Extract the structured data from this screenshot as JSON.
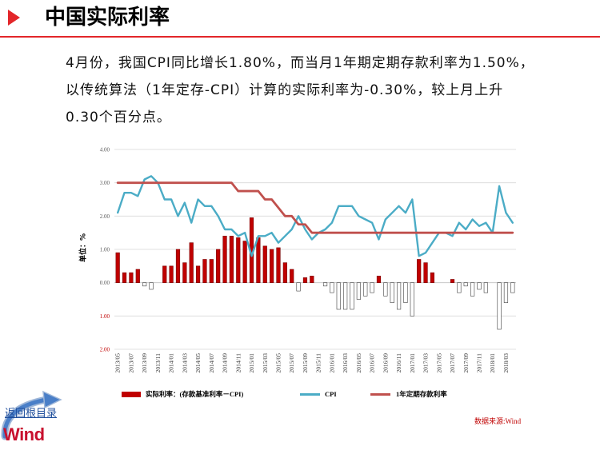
{
  "header": {
    "title": "中国实际利率"
  },
  "summary": {
    "lines": [
      "4月份，我国CPI同比增长1.80%，而当月1年期定期存款利率为1.50%，",
      "以传统算法（1年定存-CPI）计算的实际利率为-0.30%，较上月上升",
      "0.30个百分点。"
    ]
  },
  "colors": {
    "accent": "#e3262a",
    "bar": "#c00000",
    "cpi": "#4bacc6",
    "deposit": "#c0504d",
    "link": "#1f4e9c",
    "source": "#c00000"
  },
  "chart_data": {
    "type": "bar",
    "ylabel": "单位：%",
    "ylim": [
      -2,
      4
    ],
    "grid": true,
    "legend_position": "bottom",
    "negative_tick_color": "#c00000",
    "negative_bar_fill": "#ffffff",
    "y_ticks": [
      {
        "value": 4,
        "label": "4.00"
      },
      {
        "value": 3,
        "label": "3.00"
      },
      {
        "value": 2,
        "label": "2.00"
      },
      {
        "value": 1,
        "label": "1.00"
      },
      {
        "value": 0,
        "label": "0.00"
      },
      {
        "value": -1,
        "label": "1.00"
      },
      {
        "value": -2,
        "label": "2.00"
      }
    ],
    "categories": [
      "2013/05",
      "2013/06",
      "2013/07",
      "2013/08",
      "2013/09",
      "2013/10",
      "2013/11",
      "2013/12",
      "2014/01",
      "2014/02",
      "2014/03",
      "2014/04",
      "2014/05",
      "2014/06",
      "2014/07",
      "2014/08",
      "2014/09",
      "2014/10",
      "2014/11",
      "2014/12",
      "2015/01",
      "2015/02",
      "2015/03",
      "2015/04",
      "2015/05",
      "2015/06",
      "2015/07",
      "2015/08",
      "2015/09",
      "2015/10",
      "2015/11",
      "2015/12",
      "2016/01",
      "2016/02",
      "2016/03",
      "2016/04",
      "2016/05",
      "2016/06",
      "2016/07",
      "2016/08",
      "2016/09",
      "2016/10",
      "2016/11",
      "2016/12",
      "2017/01",
      "2017/02",
      "2017/03",
      "2017/04",
      "2017/05",
      "2017/06",
      "2017/07",
      "2017/08",
      "2017/09",
      "2017/10",
      "2017/11",
      "2017/12",
      "2018/01",
      "2018/02",
      "2018/03",
      "2018/04"
    ],
    "series": [
      {
        "name": "实际利率：(存款基准利率－CPI)",
        "type": "bar",
        "color": "#c00000",
        "values": [
          0.9,
          0.3,
          0.3,
          0.4,
          -0.1,
          -0.2,
          0.0,
          0.5,
          0.5,
          1.0,
          0.6,
          1.2,
          0.5,
          0.7,
          0.7,
          1.0,
          1.4,
          1.4,
          1.35,
          1.25,
          1.95,
          1.35,
          1.1,
          1.0,
          1.05,
          0.6,
          0.4,
          -0.25,
          0.15,
          0.2,
          0.0,
          -0.1,
          -0.3,
          -0.8,
          -0.8,
          -0.8,
          -0.5,
          -0.4,
          -0.3,
          0.2,
          -0.4,
          -0.6,
          -0.8,
          -0.6,
          -1.0,
          0.7,
          0.6,
          0.3,
          0.0,
          0.0,
          0.1,
          -0.3,
          -0.1,
          -0.4,
          -0.2,
          -0.3,
          0.0,
          -1.4,
          -0.6,
          -0.3
        ]
      },
      {
        "name": "CPI",
        "type": "line",
        "color": "#4bacc6",
        "values": [
          2.1,
          2.7,
          2.7,
          2.6,
          3.1,
          3.2,
          3.0,
          2.5,
          2.5,
          2.0,
          2.4,
          1.8,
          2.5,
          2.3,
          2.3,
          2.0,
          1.6,
          1.6,
          1.4,
          1.5,
          0.8,
          1.4,
          1.4,
          1.5,
          1.2,
          1.4,
          1.6,
          2.0,
          1.6,
          1.3,
          1.5,
          1.6,
          1.8,
          2.3,
          2.3,
          2.3,
          2.0,
          1.9,
          1.8,
          1.3,
          1.9,
          2.1,
          2.3,
          2.1,
          2.5,
          0.8,
          0.9,
          1.2,
          1.5,
          1.5,
          1.4,
          1.8,
          1.6,
          1.9,
          1.7,
          1.8,
          1.5,
          2.9,
          2.1,
          1.8
        ]
      },
      {
        "name": "1年定期存款利率",
        "type": "line",
        "color": "#c0504d",
        "values": [
          3.0,
          3.0,
          3.0,
          3.0,
          3.0,
          3.0,
          3.0,
          3.0,
          3.0,
          3.0,
          3.0,
          3.0,
          3.0,
          3.0,
          3.0,
          3.0,
          3.0,
          3.0,
          2.75,
          2.75,
          2.75,
          2.75,
          2.5,
          2.5,
          2.25,
          2.0,
          2.0,
          1.75,
          1.75,
          1.5,
          1.5,
          1.5,
          1.5,
          1.5,
          1.5,
          1.5,
          1.5,
          1.5,
          1.5,
          1.5,
          1.5,
          1.5,
          1.5,
          1.5,
          1.5,
          1.5,
          1.5,
          1.5,
          1.5,
          1.5,
          1.5,
          1.5,
          1.5,
          1.5,
          1.5,
          1.5,
          1.5,
          1.5,
          1.5,
          1.5
        ]
      }
    ]
  },
  "footer": {
    "back_link": "返回根目录",
    "logo_text": "Wind",
    "source": "数据来源:Wind"
  }
}
